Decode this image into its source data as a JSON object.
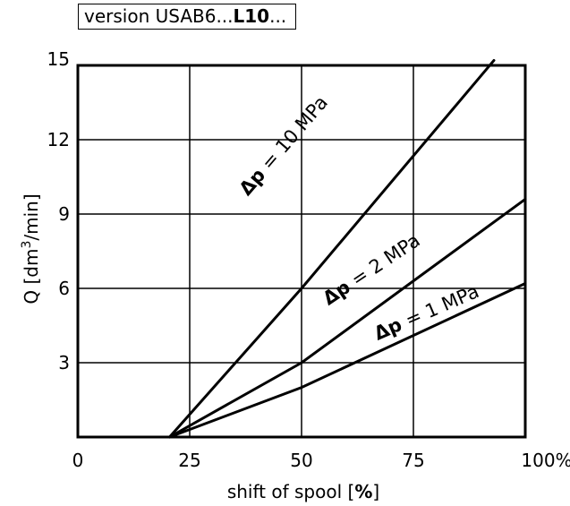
{
  "version_label": {
    "prefix": "version USAB6...",
    "bold": "L10",
    "suffix": "..."
  },
  "chart_data": {
    "type": "line",
    "xlabel": "shift of spool",
    "xlabel_unit": "%",
    "ylabel": "Q [dm",
    "ylabel_sup": "3",
    "ylabel_tail": "/min]",
    "xlim": [
      0,
      100
    ],
    "ylim": [
      0,
      15
    ],
    "x_ticks": [
      "0",
      "25",
      "50",
      "75",
      "100%"
    ],
    "y_ticks": [
      "3",
      "6",
      "9",
      "12",
      "15"
    ],
    "grid": true,
    "series": [
      {
        "name": "Δp = 10 MPa",
        "label_prefix": "Δp",
        "label_rest": " = 10 MPa",
        "points": [
          [
            20.5,
            0
          ],
          [
            50,
            6
          ],
          [
            93,
            15.2
          ]
        ]
      },
      {
        "name": "Δp = 2 MPa",
        "label_prefix": "Δp",
        "label_rest": " = 2 MPa",
        "points": [
          [
            20.5,
            0
          ],
          [
            50,
            3
          ],
          [
            100,
            9.6
          ]
        ]
      },
      {
        "name": "Δp = 1 MPa",
        "label_prefix": "Δp",
        "label_rest": " = 1 MPa",
        "points": [
          [
            20.5,
            0
          ],
          [
            50,
            2
          ],
          [
            100,
            6.2
          ]
        ]
      }
    ]
  }
}
